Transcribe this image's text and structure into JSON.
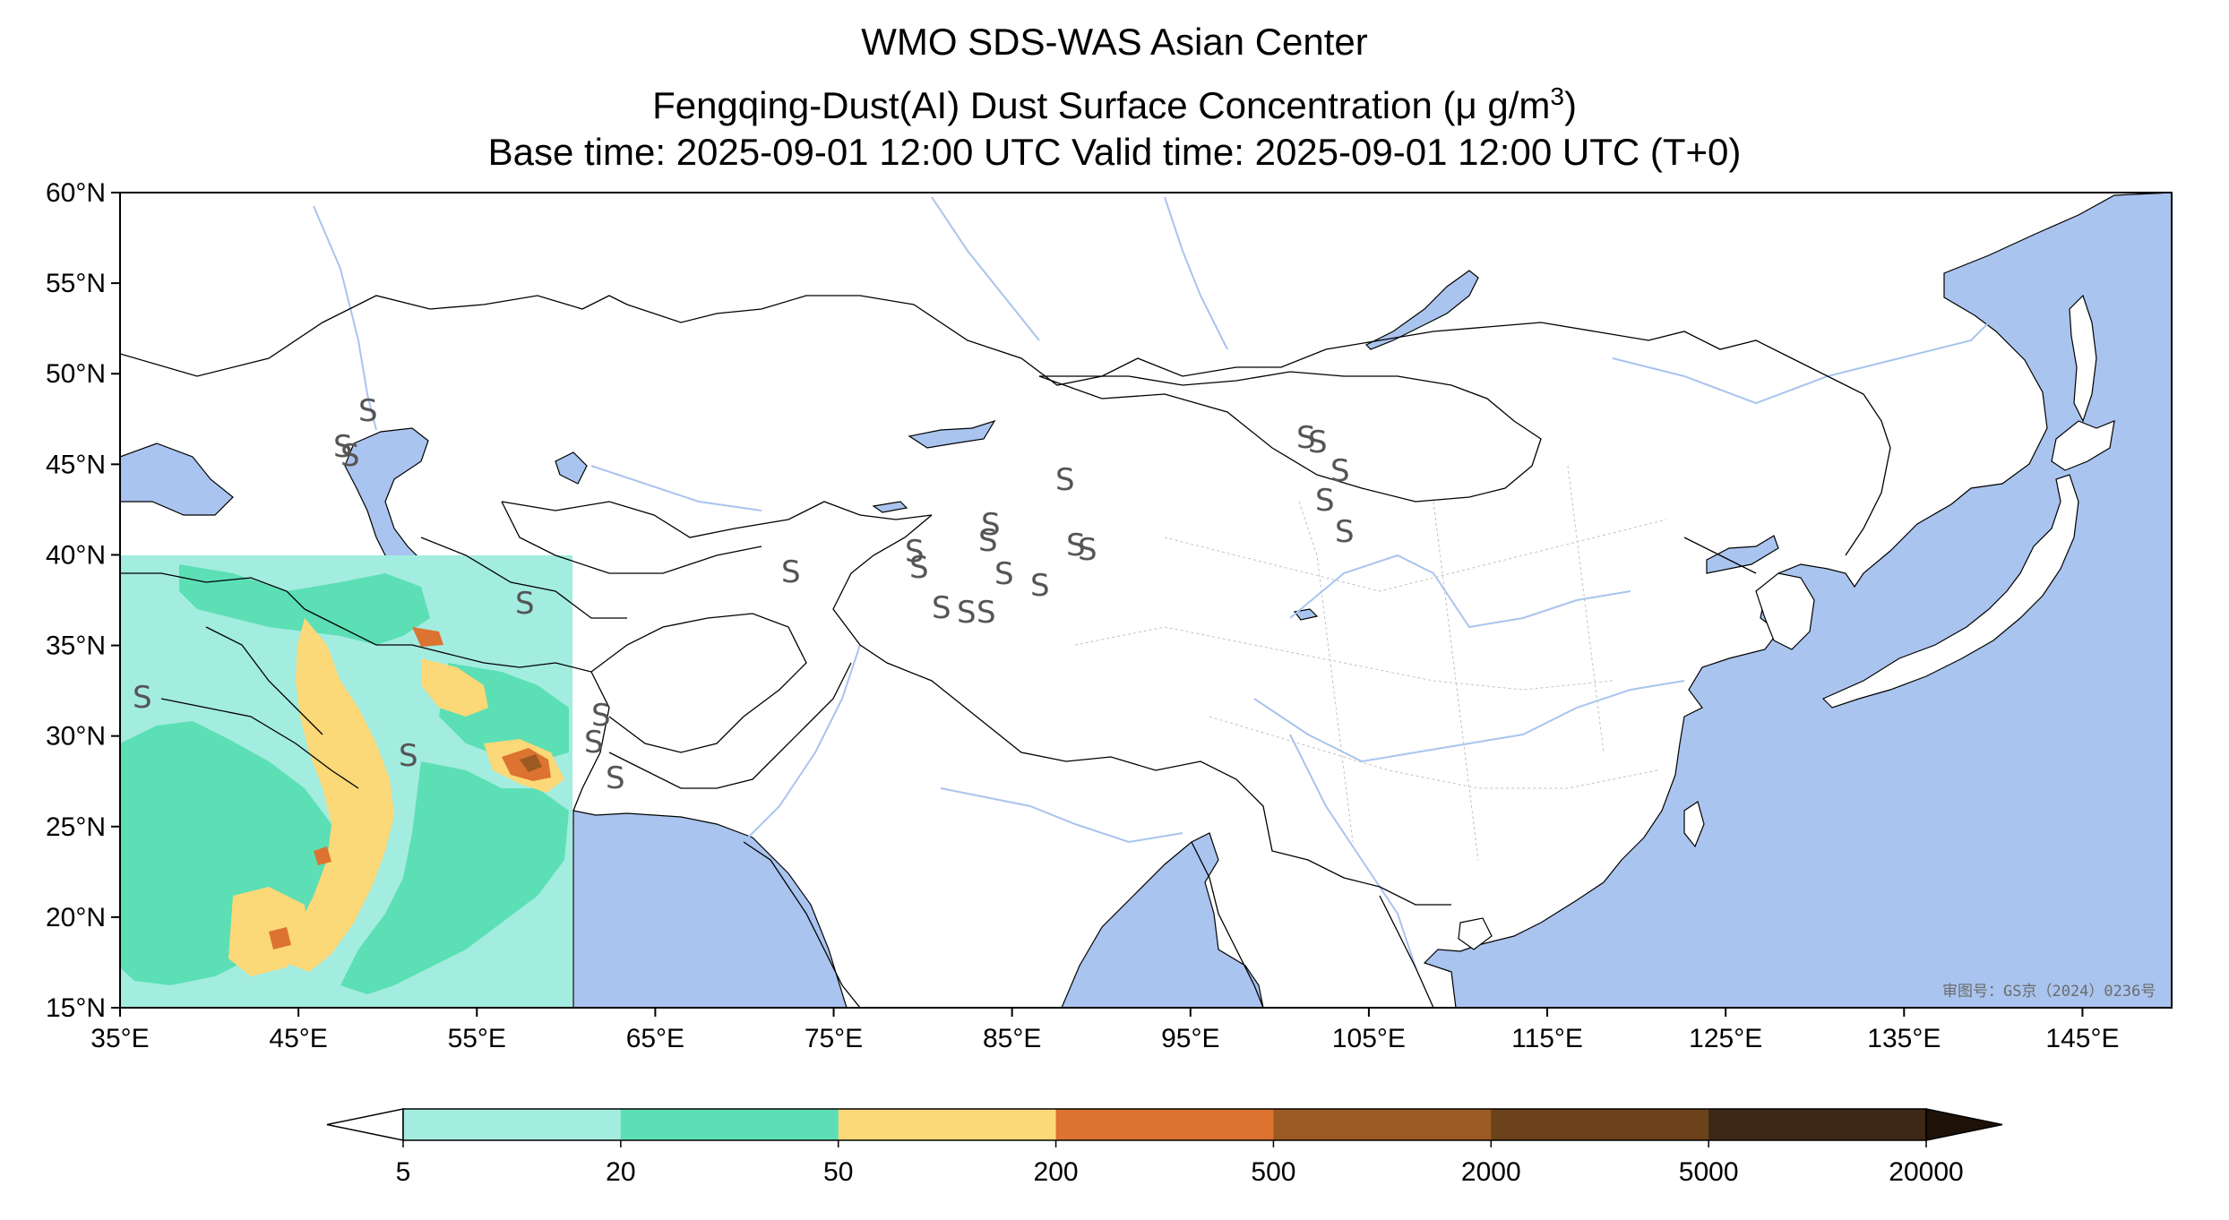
{
  "title": {
    "line1": "WMO SDS-WAS Asian Center",
    "line2_prefix": "Fengqing-Dust(AI) Dust Surface Concentration (",
    "line2_mu": "μ",
    "line2_unit": " g/m",
    "line2_sup": "3",
    "line2_suffix": ")",
    "line3": "Base time: 2025-09-01 12:00 UTC Valid time: 2025-09-01 12:00 UTC (T+0)"
  },
  "map": {
    "lon_range": [
      35,
      150
    ],
    "lat_range": [
      15,
      60
    ],
    "lon_ticks": [
      35,
      45,
      55,
      65,
      75,
      85,
      95,
      105,
      115,
      125,
      135,
      145
    ],
    "lon_tick_labels": [
      "35°E",
      "45°E",
      "55°E",
      "65°E",
      "75°E",
      "85°E",
      "95°E",
      "105°E",
      "115°E",
      "125°E",
      "135°E",
      "145°E"
    ],
    "lat_ticks": [
      15,
      20,
      25,
      30,
      35,
      40,
      45,
      50,
      55,
      60
    ],
    "lat_tick_labels": [
      "15°N",
      "20°N",
      "25°N",
      "30°N",
      "35°N",
      "40°N",
      "45°N",
      "50°N",
      "55°N",
      "60°N"
    ],
    "ocean_color": "#a9c4ee",
    "land_color": "#ffffff",
    "river_color": "#a9c4ee",
    "border_color": "#000000",
    "data_domain_lon": [
      35,
      60
    ],
    "data_domain_lat": [
      15,
      40
    ],
    "approval_stamp": "审图号：GS京（2024）0236号",
    "station_symbol": "S"
  },
  "colorbar": {
    "levels": [
      "5",
      "20",
      "50",
      "200",
      "500",
      "2000",
      "5000",
      "20000"
    ],
    "colors": [
      "#a3ece0",
      "#5cdfb5",
      "#fbd878",
      "#dc7330",
      "#9c5a23",
      "#6b4219",
      "#3c2815"
    ],
    "under_color": "#ffffff",
    "over_color": "#1e1208",
    "extend": "both"
  }
}
